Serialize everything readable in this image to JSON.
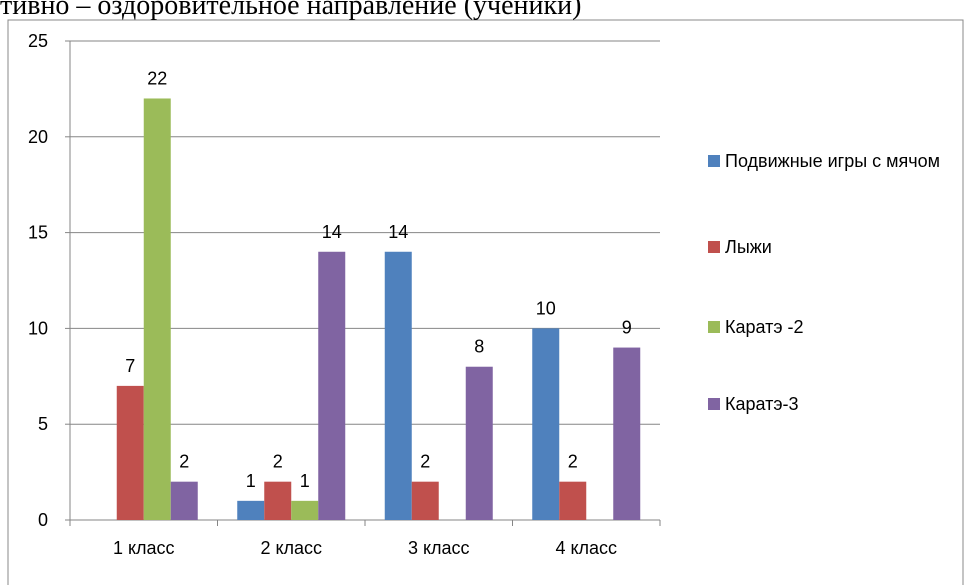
{
  "chart_data": {
    "type": "bar",
    "title": "тивно – оздоровительное направление (ученики)",
    "categories": [
      "1 класс",
      "2 класс",
      "3 класс",
      "4 класс"
    ],
    "series": [
      {
        "name": "Подвижные игры с мячом",
        "color": "#4f81bd",
        "values": [
          null,
          1,
          14,
          10
        ]
      },
      {
        "name": "Лыжи",
        "color": "#c0504d",
        "values": [
          7,
          2,
          2,
          2
        ]
      },
      {
        "name": "Каратэ -2",
        "color": "#9bbb59",
        "values": [
          22,
          1,
          null,
          null
        ]
      },
      {
        "name": "Каратэ-3",
        "color": "#8064a2",
        "values": [
          2,
          14,
          8,
          9
        ]
      }
    ],
    "ylim": [
      0,
      25
    ],
    "yticks": [
      0,
      5,
      10,
      15,
      20,
      25
    ],
    "grid": true,
    "legend": "right"
  }
}
